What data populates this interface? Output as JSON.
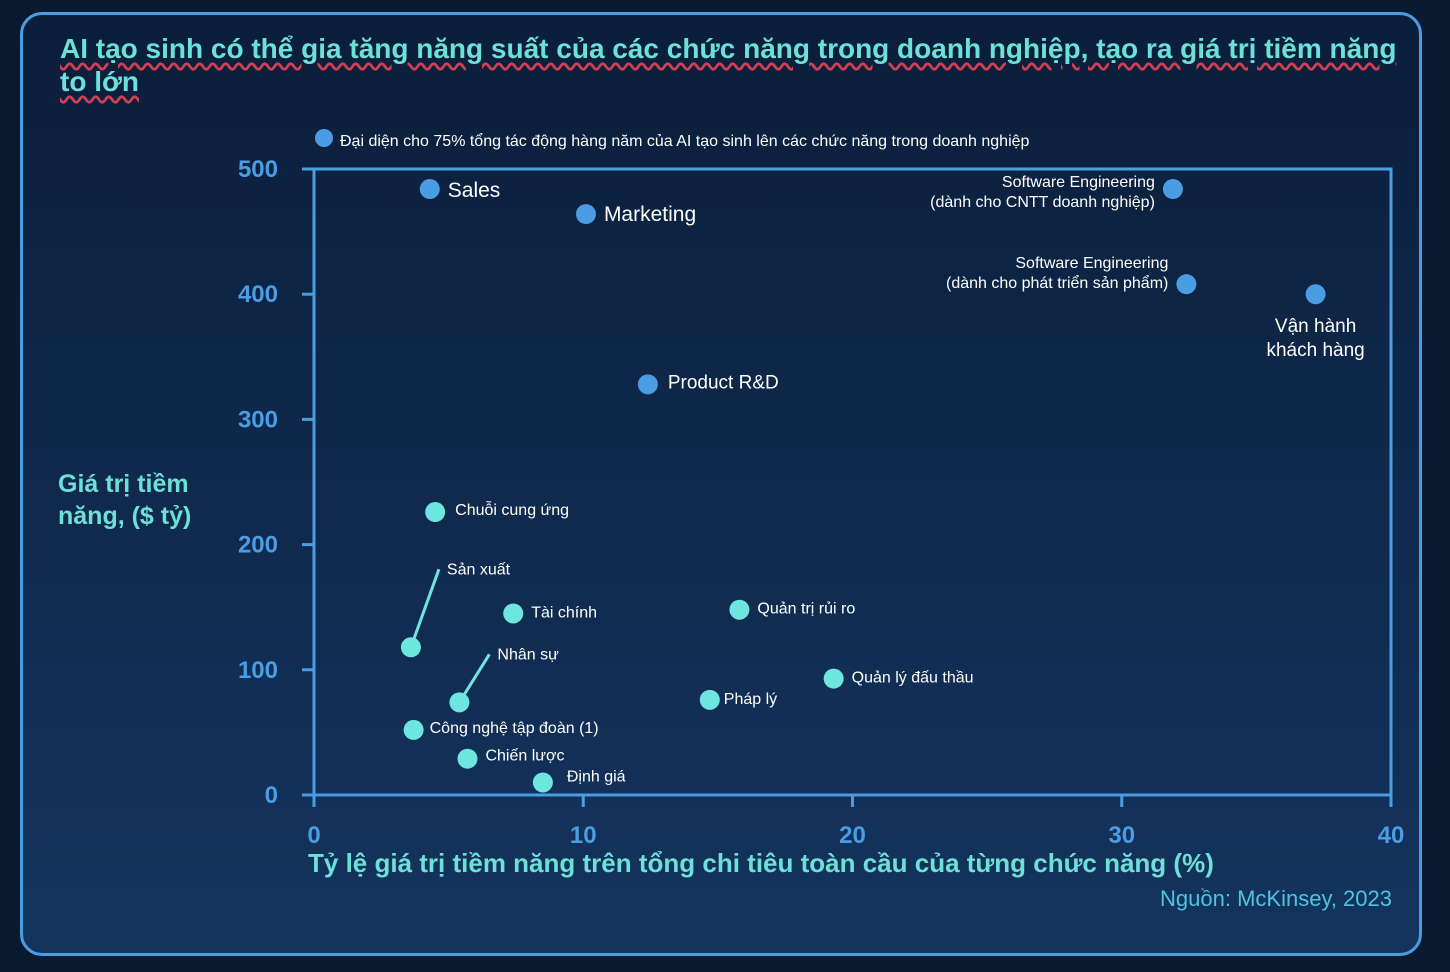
{
  "title": "AI tạo sinh có thể gia tăng năng suất của các chức năng trong doanh nghiệp, tạo ra giá trị tiềm năng to lớn",
  "source": "Nguồn: McKinsey, 2023",
  "legend": "Đại diện cho 75% tổng tác động hàng năm của AI tạo sinh lên các chức năng trong doanh nghiệp",
  "colors": {
    "highlight": "#4a9de3",
    "other": "#6ee6e0",
    "axis": "#4a9de3",
    "title": "#6de0d8"
  },
  "chart_data": {
    "type": "scatter",
    "title": "AI tạo sinh có thể gia tăng năng suất của các chức năng trong doanh nghiệp, tạo ra giá trị tiềm năng to lớn",
    "xlabel": "Tỷ lệ giá trị tiềm năng trên tổng chi tiêu toàn cầu của từng chức năng (%)",
    "ylabel": "Giá trị tiềm năng, ($ tỷ)",
    "xlim": [
      0,
      40
    ],
    "ylim": [
      0,
      500
    ],
    "xticks": [
      0,
      10,
      20,
      30,
      40
    ],
    "yticks": [
      0,
      100,
      200,
      300,
      400,
      500
    ],
    "xtick_labels": [
      "0",
      "10",
      "20",
      "30",
      "40"
    ],
    "ytick_labels": [
      "0",
      "100",
      "200",
      "300",
      "400",
      "500"
    ],
    "grid": false,
    "legend_position": "top-left",
    "points": [
      {
        "label": "Sales",
        "x": 4.3,
        "y": 484,
        "group": "highlight"
      },
      {
        "label": "Marketing",
        "x": 10.1,
        "y": 464,
        "group": "highlight"
      },
      {
        "label": "Software Engineering\n(dành cho CNTT doanh nghiệp)",
        "x": 31.9,
        "y": 484,
        "group": "highlight"
      },
      {
        "label": "Software Engineering\n(dành cho phát triển sản phẩm)",
        "x": 32.4,
        "y": 408,
        "group": "highlight"
      },
      {
        "label": "Vận hành\nkhách hàng",
        "x": 37.2,
        "y": 400,
        "group": "highlight"
      },
      {
        "label": "Product R&D",
        "x": 12.4,
        "y": 328,
        "group": "highlight"
      },
      {
        "label": "Chuỗi cung ứng",
        "x": 4.5,
        "y": 226,
        "group": "other"
      },
      {
        "label": "Sản xuất",
        "x": 3.6,
        "y": 118,
        "group": "other"
      },
      {
        "label": "Tài chính",
        "x": 7.4,
        "y": 145,
        "group": "other"
      },
      {
        "label": "Quản trị rủi ro",
        "x": 15.8,
        "y": 148,
        "group": "other"
      },
      {
        "label": "Nhân sự",
        "x": 5.4,
        "y": 74,
        "group": "other"
      },
      {
        "label": "Quản lý đấu thầu",
        "x": 19.3,
        "y": 93,
        "group": "other"
      },
      {
        "label": "Pháp lý",
        "x": 14.7,
        "y": 76,
        "group": "other"
      },
      {
        "label": "Công nghệ tập đoàn (1)",
        "x": 3.7,
        "y": 52,
        "group": "other"
      },
      {
        "label": "Chiến lược",
        "x": 5.7,
        "y": 29,
        "group": "other"
      },
      {
        "label": "Định giá",
        "x": 8.5,
        "y": 10,
        "group": "other"
      }
    ]
  }
}
